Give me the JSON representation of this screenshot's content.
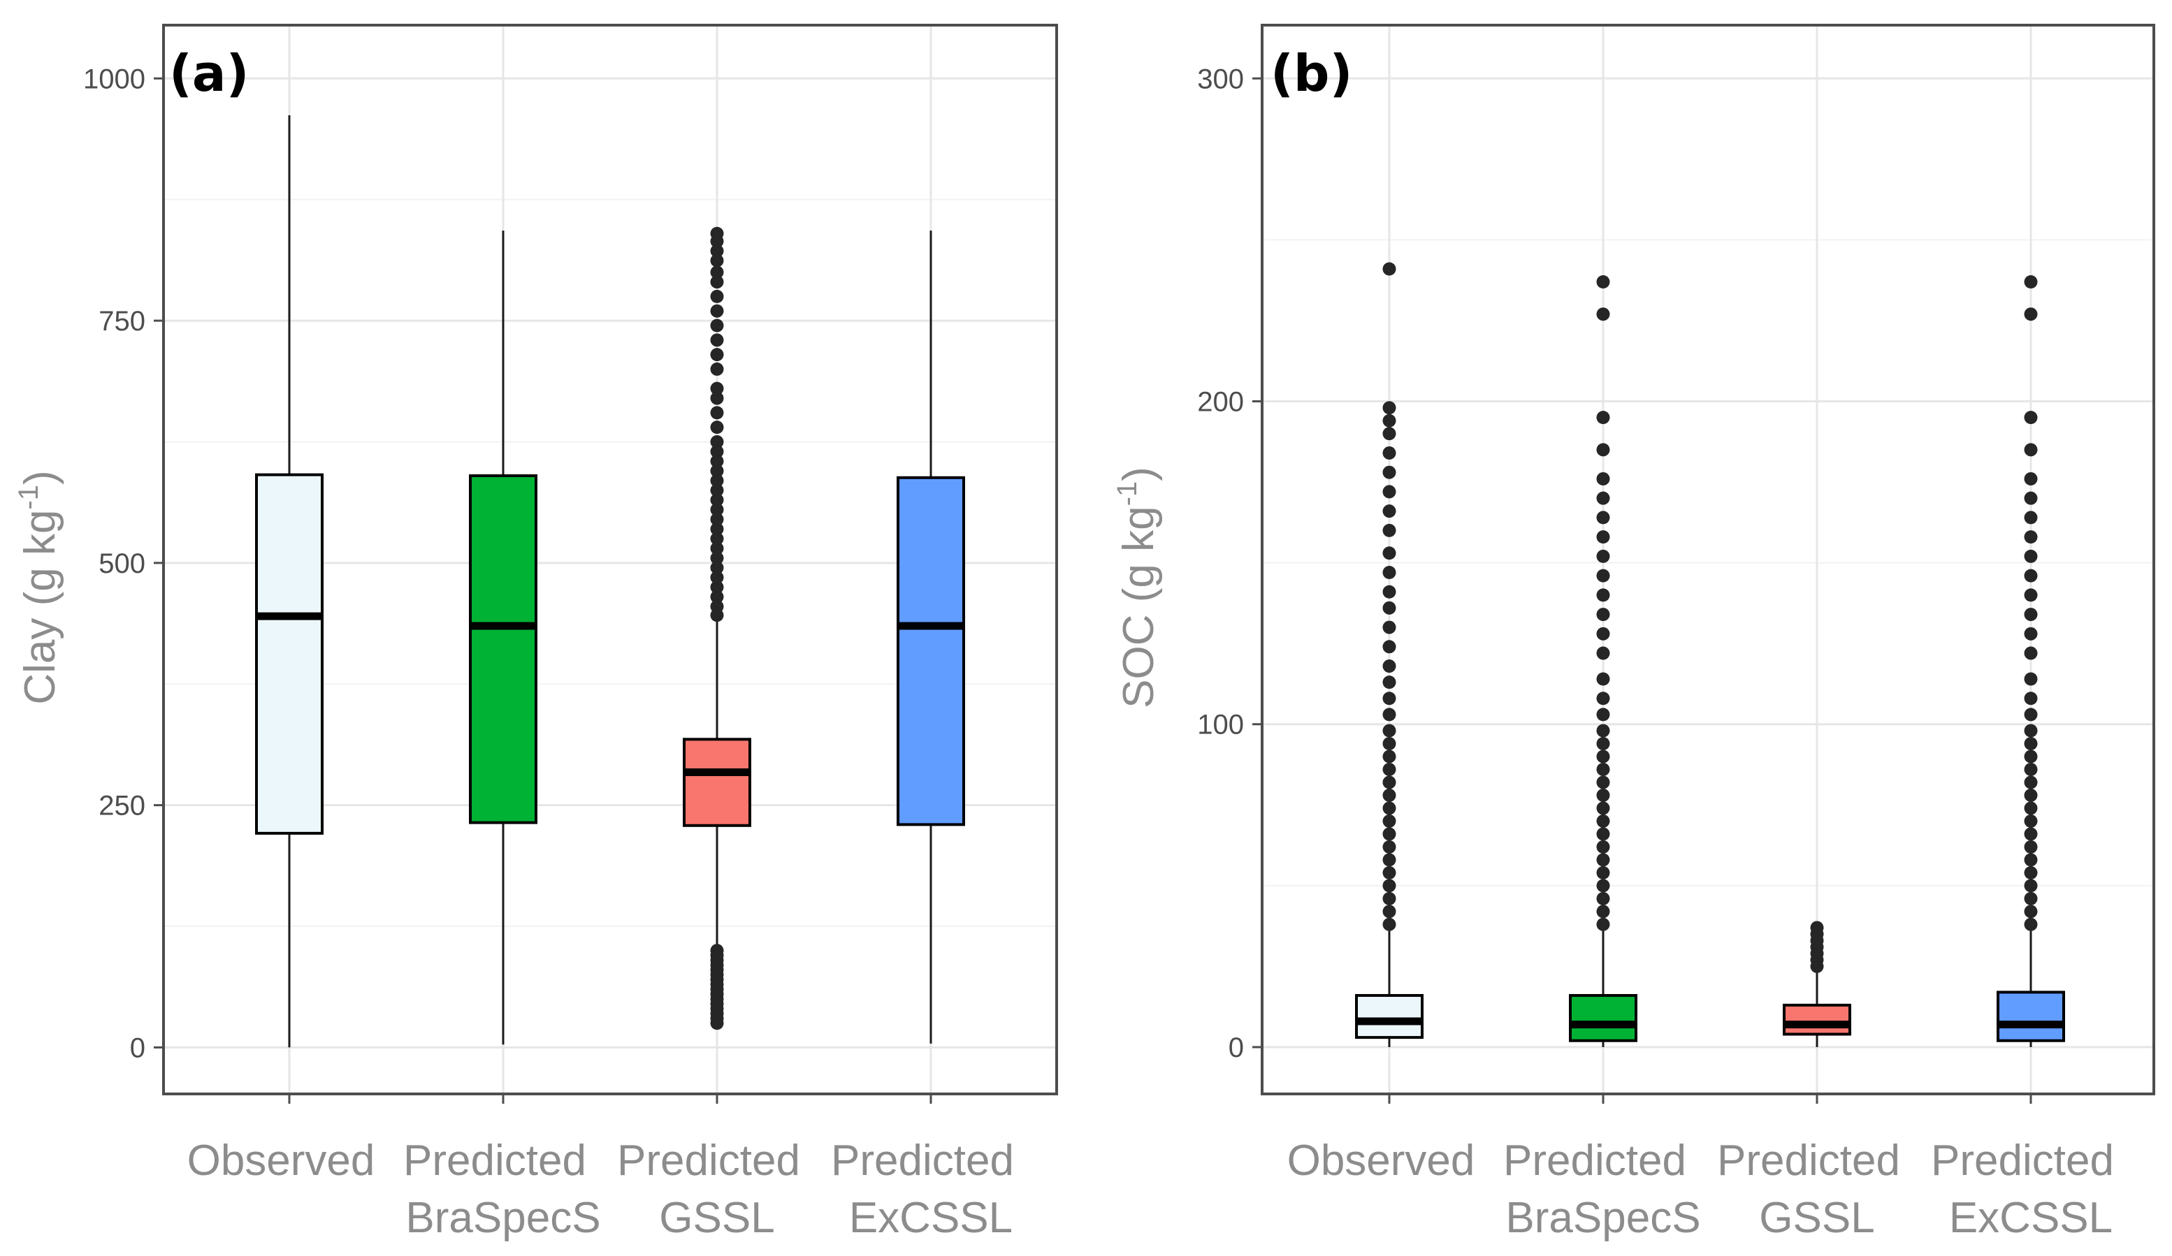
{
  "chart_data": [
    {
      "type": "boxplot",
      "panel_label": "(a)",
      "ylabel_main": "Clay (g kg",
      "ylabel_sup": "-1",
      "ylabel_close": ")",
      "ylim": [
        -48,
        1055
      ],
      "yticks": [
        0,
        250,
        500,
        750,
        1000
      ],
      "ytick_labels": [
        "0",
        "250",
        "500",
        "750",
        "1000"
      ],
      "grid": true,
      "categories": [
        {
          "line1": "Observed",
          "line2": ""
        },
        {
          "line1": "Predicted",
          "line2": "BraSpecS"
        },
        {
          "line1": "Predicted",
          "line2": "GSSL"
        },
        {
          "line1": "Predicted",
          "line2": "ExCSSL"
        }
      ],
      "boxes": [
        {
          "name": "Observed",
          "color": "#EBF7FA",
          "whisker_low": 0,
          "q1": 221,
          "median": 445,
          "q3": 591,
          "whisker_high": 962,
          "outliers": []
        },
        {
          "name": "Predicted BraSpecS",
          "color": "#00B234",
          "whisker_low": 3,
          "q1": 232,
          "median": 435,
          "q3": 590,
          "whisker_high": 843,
          "outliers": []
        },
        {
          "name": "Predicted GSSL",
          "color": "#F8766D",
          "whisker_low": 103,
          "q1": 229,
          "median": 284,
          "q3": 318,
          "whisker_high": 440,
          "outliers": [
            25,
            30,
            35,
            40,
            45,
            50,
            55,
            60,
            65,
            70,
            75,
            80,
            85,
            90,
            95,
            100,
            446,
            455,
            465,
            475,
            485,
            495,
            505,
            515,
            525,
            535,
            545,
            555,
            565,
            575,
            585,
            595,
            605,
            615,
            625,
            640,
            655,
            670,
            680,
            700,
            715,
            730,
            745,
            760,
            775,
            790,
            800,
            812,
            822,
            832,
            840
          ]
        },
        {
          "name": "Predicted ExCSSL",
          "color": "#619CFF",
          "whisker_low": 4,
          "q1": 230,
          "median": 435,
          "q3": 588,
          "whisker_high": 843,
          "outliers": []
        }
      ]
    },
    {
      "type": "boxplot",
      "panel_label": "(b)",
      "ylabel_main": "SOC (g kg",
      "ylabel_sup": "-1",
      "ylabel_close": ")",
      "ylim": [
        -14.5,
        316.5
      ],
      "yticks": [
        0,
        100,
        200,
        300
      ],
      "ytick_labels": [
        "0",
        "100",
        "200",
        "300"
      ],
      "grid": true,
      "categories": [
        {
          "line1": "Observed",
          "line2": ""
        },
        {
          "line1": "Predicted",
          "line2": "BraSpecS"
        },
        {
          "line1": "Predicted",
          "line2": "GSSL"
        },
        {
          "line1": "Predicted",
          "line2": "ExCSSL"
        }
      ],
      "boxes": [
        {
          "name": "Observed",
          "color": "#EBF7FA",
          "whisker_low": 0,
          "q1": 3,
          "median": 8,
          "q3": 16,
          "whisker_high": 36,
          "outliers": [
            38,
            42,
            46,
            50,
            54,
            58,
            62,
            66,
            70,
            74,
            78,
            82,
            86,
            90,
            94,
            98,
            103,
            108,
            113,
            118,
            124,
            130,
            136,
            141,
            147,
            153,
            160,
            166,
            172,
            178,
            184,
            190,
            194,
            198,
            241
          ]
        },
        {
          "name": "Predicted BraSpecS",
          "color": "#00B234",
          "whisker_low": 0,
          "q1": 2,
          "median": 7,
          "q3": 16,
          "whisker_high": 36,
          "outliers": [
            38,
            42,
            46,
            50,
            54,
            58,
            62,
            66,
            70,
            74,
            78,
            82,
            86,
            90,
            94,
            98,
            103,
            108,
            114,
            122,
            128,
            134,
            140,
            146,
            152,
            158,
            164,
            170,
            176,
            185,
            195,
            227,
            237
          ]
        },
        {
          "name": "Predicted GSSL",
          "color": "#F8766D",
          "whisker_low": 0,
          "q1": 4,
          "median": 7,
          "q3": 13,
          "whisker_high": 24,
          "outliers": [
            25,
            27,
            29,
            31,
            33,
            35,
            37
          ]
        },
        {
          "name": "Predicted ExCSSL",
          "color": "#619CFF",
          "whisker_low": 0,
          "q1": 2,
          "median": 7,
          "q3": 17,
          "whisker_high": 36,
          "outliers": [
            38,
            42,
            46,
            50,
            54,
            58,
            62,
            66,
            70,
            74,
            78,
            82,
            86,
            90,
            94,
            98,
            103,
            108,
            114,
            122,
            128,
            134,
            140,
            146,
            152,
            158,
            164,
            170,
            176,
            185,
            195,
            227,
            237
          ]
        }
      ]
    }
  ]
}
